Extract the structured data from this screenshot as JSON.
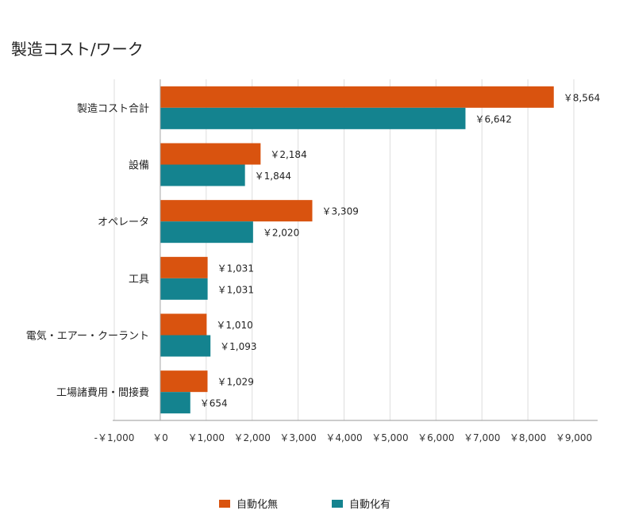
{
  "chart_data": {
    "type": "bar",
    "orientation": "horizontal",
    "title": "製造コスト/ワーク",
    "categories": [
      "製造コスト合計",
      "設備",
      "オペレータ",
      "工具",
      "電気・エアー・クーラント",
      "工場諸費用・間接費"
    ],
    "series": [
      {
        "name": "自動化無",
        "color": "#d9530f",
        "values": [
          8564,
          2184,
          3309,
          1031,
          1010,
          1029
        ],
        "labels": [
          "￥8,564",
          "￥2,184",
          "￥3,309",
          "￥1,031",
          "￥1,010",
          "￥1,029"
        ]
      },
      {
        "name": "自動化有",
        "color": "#14838f",
        "values": [
          6642,
          1844,
          2020,
          1031,
          1093,
          654
        ],
        "labels": [
          "￥6,642",
          "￥1,844",
          "￥2,020",
          "￥1,031",
          "￥1,093",
          "￥654"
        ]
      }
    ],
    "xlim": [
      -1000,
      9000
    ],
    "xticks": [
      -1000,
      0,
      1000,
      2000,
      3000,
      4000,
      5000,
      6000,
      7000,
      8000,
      9000
    ],
    "xtick_labels": [
      "-￥1,000",
      "￥0",
      "￥1,000",
      "￥2,000",
      "￥3,000",
      "￥4,000",
      "￥5,000",
      "￥6,000",
      "￥7,000",
      "￥8,000",
      "￥9,000"
    ],
    "grid": true,
    "legend_position": "bottom"
  }
}
